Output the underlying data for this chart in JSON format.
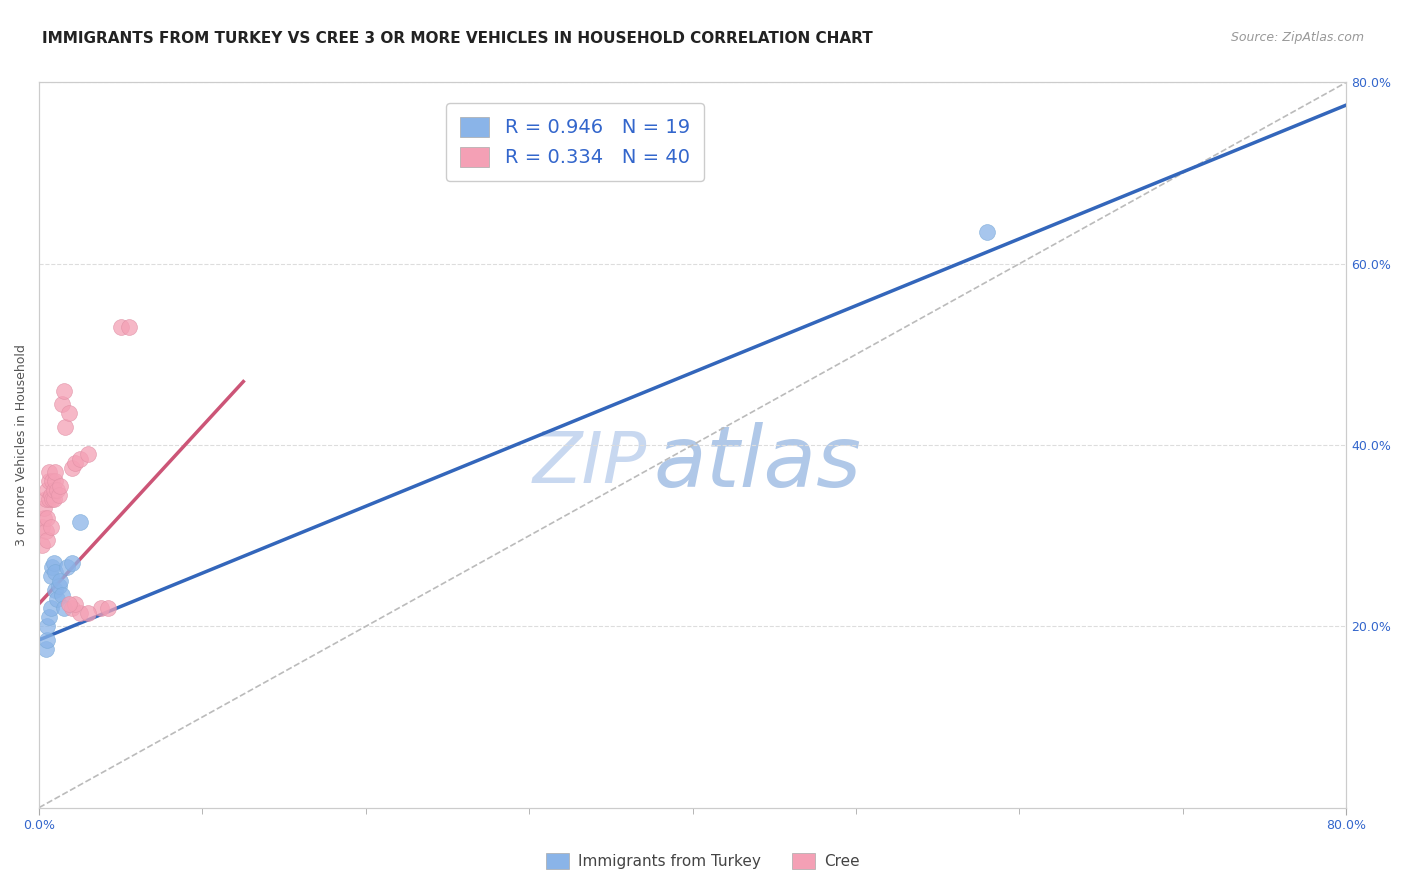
{
  "title": "IMMIGRANTS FROM TURKEY VS CREE 3 OR MORE VEHICLES IN HOUSEHOLD CORRELATION CHART",
  "source": "Source: ZipAtlas.com",
  "ylabel": "3 or more Vehicles in Household",
  "ylabel_right_ticks": [
    "20.0%",
    "40.0%",
    "60.0%",
    "80.0%"
  ],
  "ylabel_right_values": [
    0.2,
    0.4,
    0.6,
    0.8
  ],
  "watermark_zip": "ZIP",
  "watermark_atlas": "atlas",
  "legend_blue_R": "0.946",
  "legend_blue_N": "19",
  "legend_pink_R": "0.334",
  "legend_pink_N": "40",
  "legend_label_blue": "Immigrants from Turkey",
  "legend_label_pink": "Cree",
  "blue_color": "#8ab4e8",
  "blue_color_edge": "#7aaad8",
  "pink_color": "#f4a0b5",
  "pink_color_edge": "#e090a5",
  "blue_line_color": "#3366BB",
  "pink_line_color": "#CC5577",
  "diag_color": "#BBBBBB",
  "blue_scatter_x": [
    0.004,
    0.005,
    0.005,
    0.006,
    0.007,
    0.007,
    0.008,
    0.009,
    0.01,
    0.01,
    0.011,
    0.012,
    0.013,
    0.014,
    0.015,
    0.017,
    0.02,
    0.025,
    0.58
  ],
  "blue_scatter_y": [
    0.175,
    0.185,
    0.2,
    0.21,
    0.22,
    0.255,
    0.265,
    0.27,
    0.24,
    0.26,
    0.23,
    0.245,
    0.25,
    0.235,
    0.22,
    0.265,
    0.27,
    0.315,
    0.635
  ],
  "pink_scatter_x": [
    0.002,
    0.002,
    0.003,
    0.003,
    0.004,
    0.004,
    0.005,
    0.005,
    0.005,
    0.006,
    0.006,
    0.006,
    0.007,
    0.007,
    0.008,
    0.008,
    0.009,
    0.009,
    0.01,
    0.01,
    0.011,
    0.012,
    0.013,
    0.014,
    0.015,
    0.016,
    0.018,
    0.02,
    0.022,
    0.025,
    0.03,
    0.038,
    0.042,
    0.05,
    0.055,
    0.02,
    0.025,
    0.03,
    0.022,
    0.018
  ],
  "pink_scatter_y": [
    0.29,
    0.31,
    0.32,
    0.33,
    0.305,
    0.34,
    0.295,
    0.35,
    0.32,
    0.34,
    0.36,
    0.37,
    0.31,
    0.345,
    0.34,
    0.36,
    0.34,
    0.35,
    0.36,
    0.37,
    0.35,
    0.345,
    0.355,
    0.445,
    0.46,
    0.42,
    0.435,
    0.375,
    0.38,
    0.385,
    0.39,
    0.22,
    0.22,
    0.53,
    0.53,
    0.22,
    0.215,
    0.215,
    0.225,
    0.225
  ],
  "blue_line_x": [
    0.0,
    0.8
  ],
  "blue_line_y": [
    0.185,
    0.775
  ],
  "pink_line_x": [
    0.0,
    0.125
  ],
  "pink_line_y": [
    0.225,
    0.47
  ],
  "diag_line_x": [
    0.0,
    0.8
  ],
  "diag_line_y": [
    0.0,
    0.8
  ],
  "xlim": [
    0.0,
    0.8
  ],
  "ylim": [
    0.0,
    0.8
  ],
  "title_fontsize": 11,
  "source_fontsize": 9,
  "axis_label_fontsize": 9,
  "tick_fontsize": 9,
  "legend_fontsize": 14,
  "watermark_fontsize_zip": 52,
  "watermark_fontsize_atlas": 62,
  "watermark_color_zip": "#c8d8f0",
  "watermark_color_atlas": "#b0c8e8",
  "background_color": "#FFFFFF",
  "grid_color": "#DDDDDD",
  "legend_color": "#3366CC"
}
